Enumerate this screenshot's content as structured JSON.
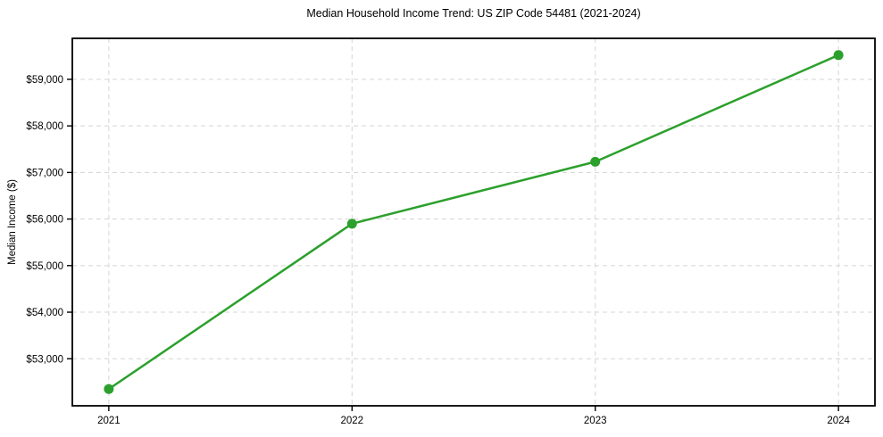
{
  "chart_data": {
    "type": "line",
    "title": "Median Household Income Trend: US ZIP Code 54481 (2021-2024)",
    "xlabel": "",
    "ylabel": "Median Income ($)",
    "x": [
      2021,
      2022,
      2023,
      2024
    ],
    "series": [
      {
        "name": "Median Household Income",
        "values": [
          52350,
          55900,
          57230,
          59520
        ],
        "color": "#2ca02c"
      }
    ],
    "xticks": {
      "values": [
        2021,
        2022,
        2023,
        2024
      ],
      "labels": [
        "2021",
        "2022",
        "2023",
        "2024"
      ]
    },
    "yticks": {
      "values": [
        53000,
        54000,
        55000,
        56000,
        57000,
        58000,
        59000
      ],
      "labels": [
        "$53,000",
        "$54,000",
        "$55,000",
        "$56,000",
        "$57,000",
        "$58,000",
        "$59,000"
      ]
    },
    "xlim": [
      2020.85,
      2024.15
    ],
    "ylim": [
      51990,
      59880
    ],
    "grid": true,
    "grid_style": "dashed",
    "grid_color": "#d4d4d4",
    "axis_color": "#000000",
    "background": "#ffffff",
    "legend": "none",
    "line_width": 2.5,
    "marker": "circle",
    "marker_radius": 5.5
  }
}
